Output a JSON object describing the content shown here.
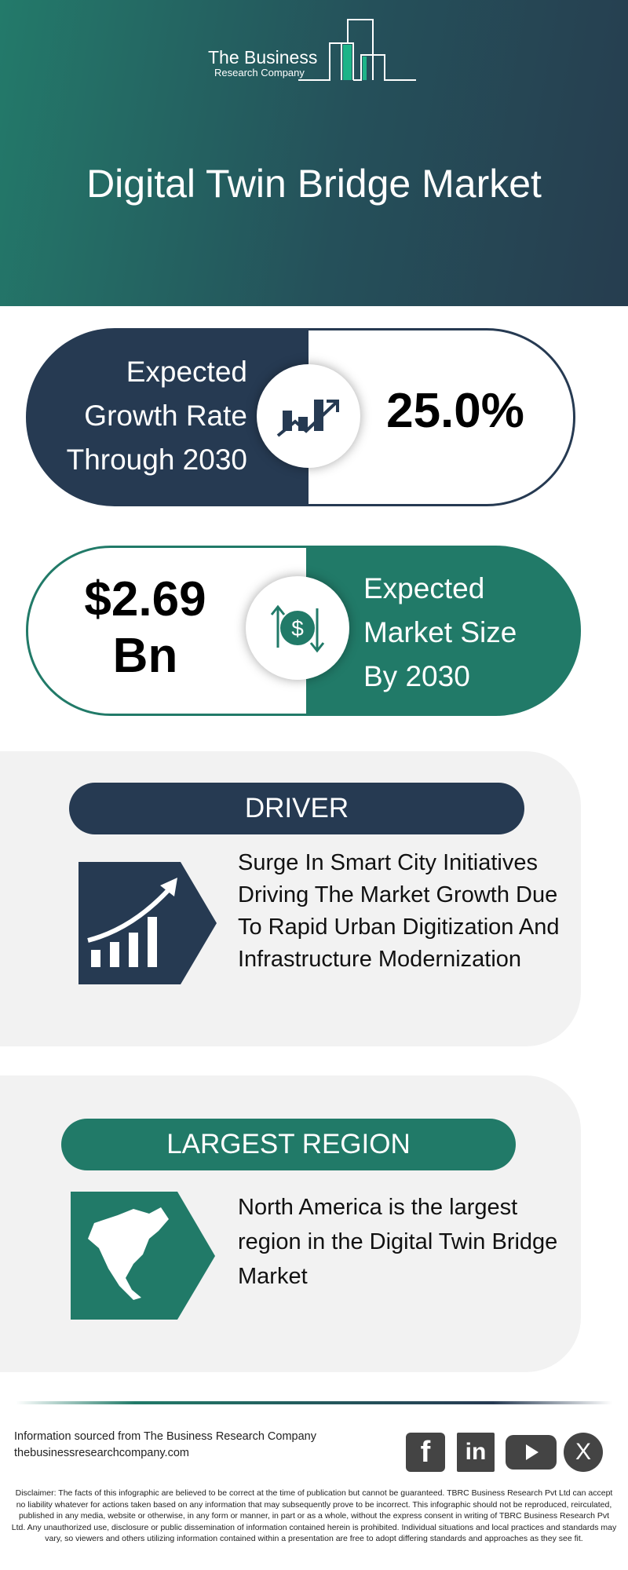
{
  "header": {
    "logo_line1": "The Business",
    "logo_line2": "Research Company",
    "title": "Digital Twin Bridge Market"
  },
  "growth": {
    "label_lines": [
      "Expected",
      "Growth Rate",
      "Through 2030"
    ],
    "value": "25.0%",
    "icon": "growth-chart-icon"
  },
  "market_size": {
    "value_lines": [
      "$2.69",
      "Bn"
    ],
    "label_lines": [
      "Expected",
      "Market Size",
      "By 2030"
    ],
    "icon": "dollar-exchange-icon"
  },
  "driver": {
    "heading": "DRIVER",
    "text": "Surge In Smart City Initiatives Driving The Market Growth Due To Rapid Urban Digitization And Infrastructure Modernization",
    "icon": "rising-bar-chart-icon"
  },
  "region": {
    "heading": "LARGEST REGION",
    "text": "North America is the largest region in the Digital Twin Bridge Market",
    "icon": "north-america-map-icon"
  },
  "footer": {
    "source": "Information sourced from The Business Research Company",
    "website": "thebusinessresearchcompany.com",
    "social": [
      "facebook",
      "linkedin",
      "youtube",
      "x"
    ],
    "disclaimer": "Disclaimer: The facts of this infographic are believed to be correct at the time of publication but cannot be guaranteed. TBRC Business Research Pvt Ltd can accept no liability whatever for actions taken based on any information that may subsequently prove to be incorrect. This infographic should not be reproduced, reirculated, published in any media, website or otherwise, in any form or manner, in part or as a whole, without the express consent in writing of TBRC Business Research Pvt Ltd. Any unauthorized use, disclosure or public dissemination of information contained herein is prohibited. Individual situations and local practices and standards may vary, so viewers and others utilizing information contained within a presentation are free to adopt differing standards and approaches as they see fit."
  },
  "colors": {
    "dark": "#263a52",
    "teal": "#217a68",
    "panel": "#f2f2f2",
    "logo_accent": "#1db488"
  }
}
